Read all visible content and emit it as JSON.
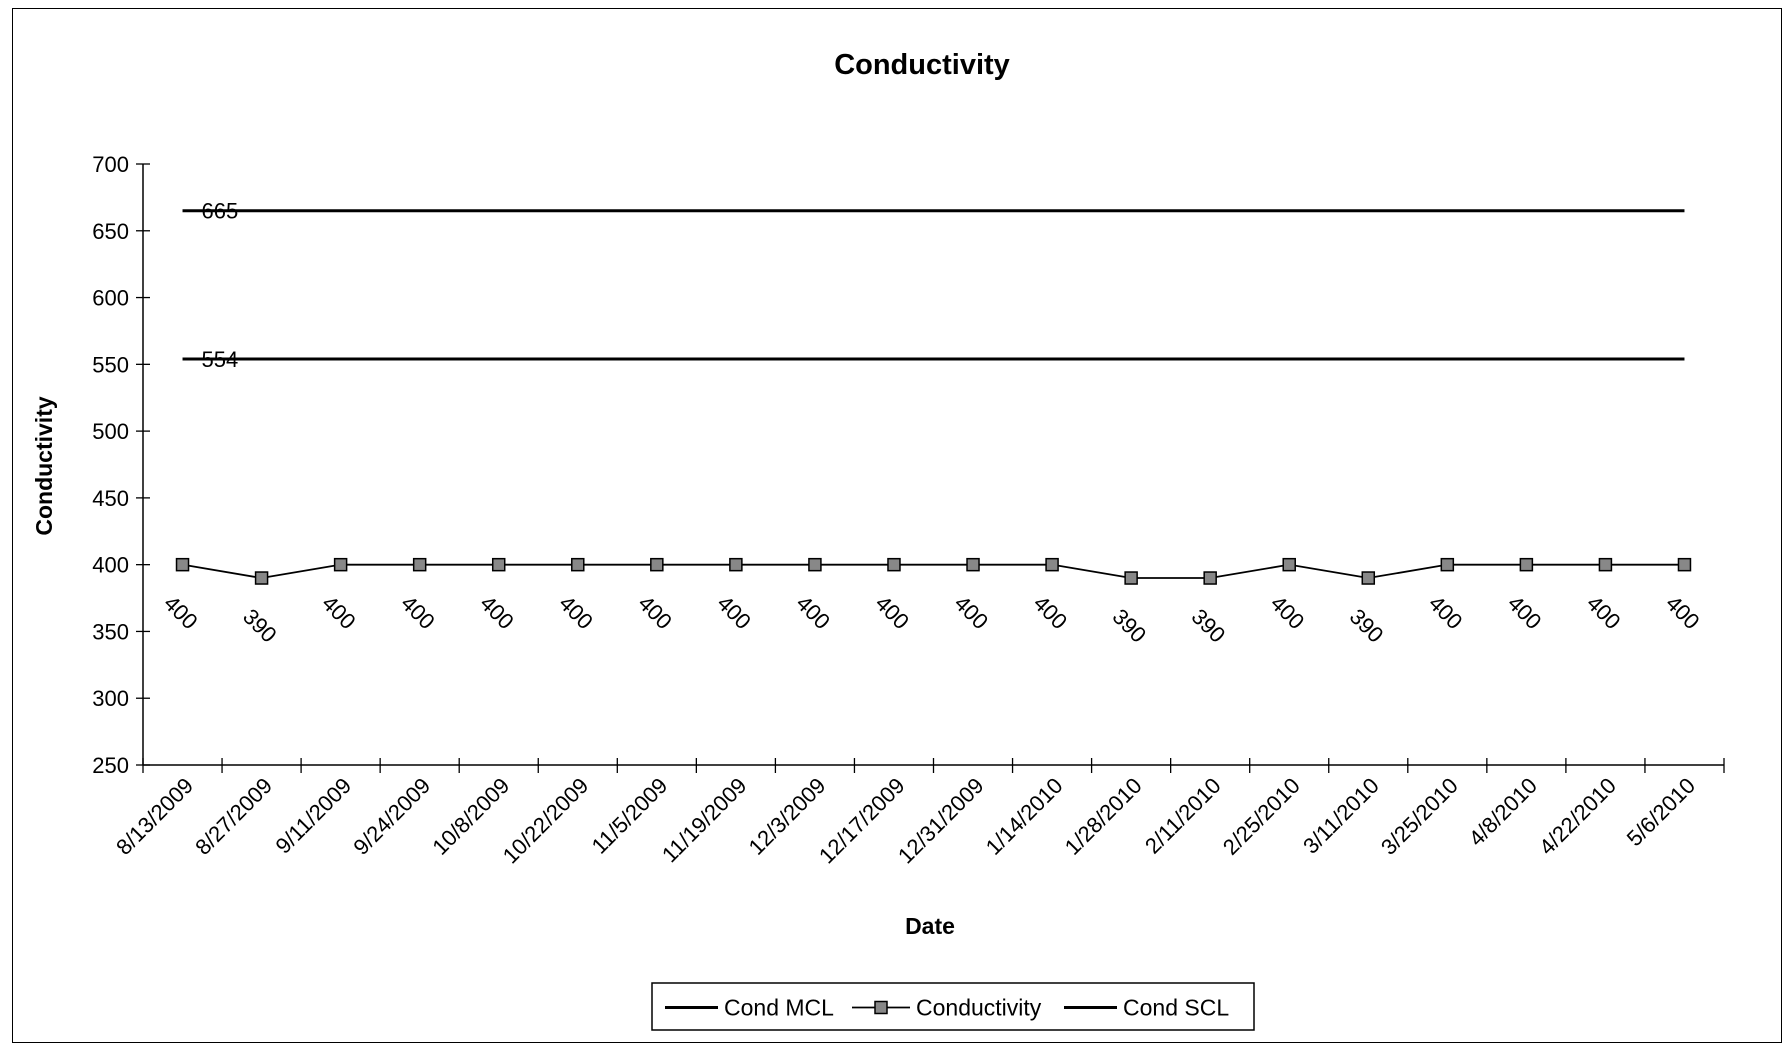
{
  "chart_data": {
    "type": "line",
    "title": "Conductivity",
    "xlabel": "Date",
    "ylabel": "Conductivity",
    "ylim": [
      250,
      700
    ],
    "yticks": [
      250,
      300,
      350,
      400,
      450,
      500,
      550,
      600,
      650,
      700
    ],
    "ytick_labels": [
      "250",
      "300",
      "350",
      "400",
      "450",
      "500",
      "550",
      "600",
      "650",
      "700"
    ],
    "categories": [
      "8/13/2009",
      "8/27/2009",
      "9/11/2009",
      "9/24/2009",
      "10/8/2009",
      "10/22/2009",
      "11/5/2009",
      "11/19/2009",
      "12/3/2009",
      "12/17/2009",
      "12/31/2009",
      "1/14/2010",
      "1/28/2010",
      "2/11/2010",
      "2/25/2010",
      "3/11/2010",
      "3/25/2010",
      "4/8/2010",
      "4/22/2010",
      "5/6/2010"
    ],
    "series": [
      {
        "name": "Cond MCL",
        "constant": 665,
        "label": "665",
        "color": "#000000"
      },
      {
        "name": "Conductivity",
        "values": [
          400,
          390,
          400,
          400,
          400,
          400,
          400,
          400,
          400,
          400,
          400,
          400,
          390,
          390,
          400,
          390,
          400,
          400,
          400,
          400
        ],
        "data_labels": [
          "400",
          "390",
          "400",
          "400",
          "400",
          "400",
          "400",
          "400",
          "400",
          "400",
          "400",
          "400",
          "390",
          "390",
          "400",
          "390",
          "400",
          "400",
          "400",
          "400"
        ],
        "marker": "square",
        "color": "#000000"
      },
      {
        "name": "Cond SCL",
        "constant": 554,
        "label": "554",
        "color": "#000000"
      }
    ],
    "legend_position": "bottom",
    "grid": false
  }
}
